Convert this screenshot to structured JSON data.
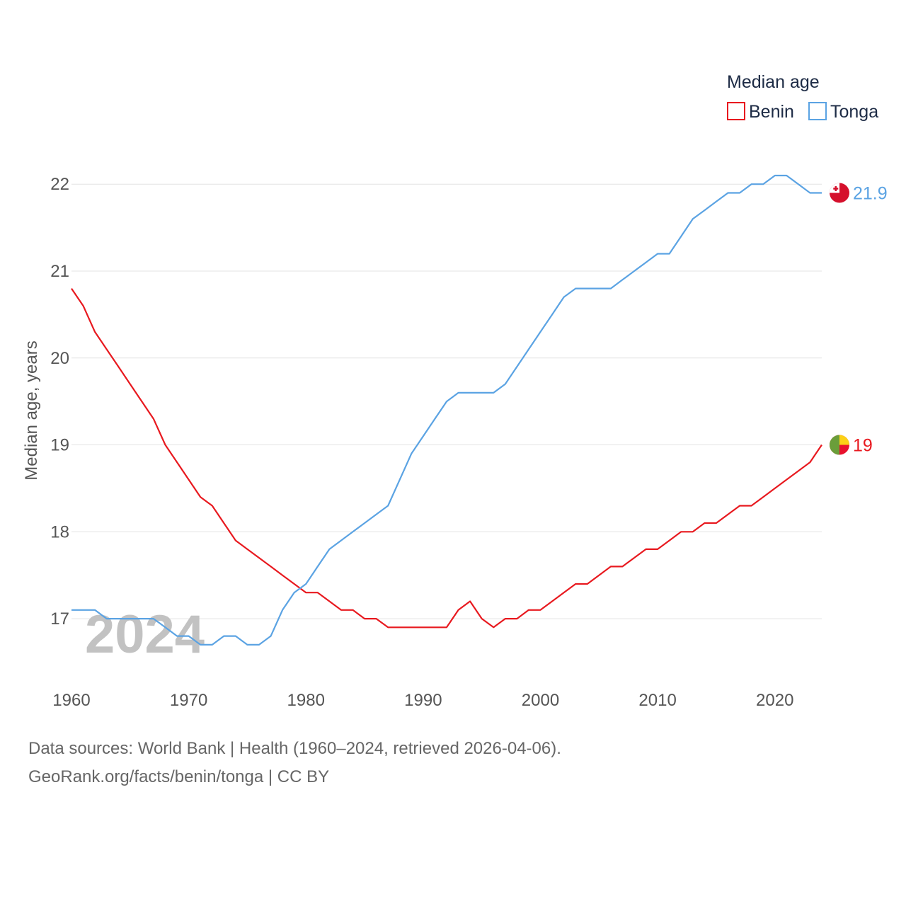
{
  "chart_data": {
    "type": "line",
    "legend_title": "Median age",
    "legend_position": "top-right",
    "ylabel": "Median age, years",
    "xlabel": "",
    "xlim": [
      1960,
      2024
    ],
    "ylim": [
      16.3,
      22.45
    ],
    "x_ticks": [
      1960,
      1970,
      1980,
      1990,
      2000,
      2010,
      2020
    ],
    "y_ticks": [
      17,
      18,
      19,
      20,
      21,
      22
    ],
    "grid": true,
    "current_year_label": "2024",
    "series": [
      {
        "name": "Benin",
        "color": "#e8191f",
        "flag": "benin-flag",
        "end_label": "19",
        "x": [
          1960,
          1961,
          1962,
          1963,
          1964,
          1965,
          1966,
          1967,
          1968,
          1969,
          1970,
          1971,
          1972,
          1973,
          1974,
          1975,
          1976,
          1977,
          1978,
          1979,
          1980,
          1981,
          1982,
          1983,
          1984,
          1985,
          1986,
          1987,
          1988,
          1989,
          1990,
          1991,
          1992,
          1993,
          1994,
          1995,
          1996,
          1997,
          1998,
          1999,
          2000,
          2001,
          2002,
          2003,
          2004,
          2005,
          2006,
          2007,
          2008,
          2009,
          2010,
          2011,
          2012,
          2013,
          2014,
          2015,
          2016,
          2017,
          2018,
          2019,
          2020,
          2021,
          2022,
          2023,
          2024
        ],
        "values": [
          20.8,
          20.6,
          20.3,
          20.1,
          19.9,
          19.7,
          19.5,
          19.3,
          19.0,
          18.8,
          18.6,
          18.4,
          18.3,
          18.1,
          17.9,
          17.8,
          17.7,
          17.6,
          17.5,
          17.4,
          17.3,
          17.3,
          17.2,
          17.1,
          17.1,
          17.0,
          17.0,
          16.9,
          16.9,
          16.9,
          16.9,
          16.9,
          16.9,
          17.1,
          17.2,
          17.0,
          16.9,
          17.0,
          17.0,
          17.1,
          17.1,
          17.2,
          17.3,
          17.4,
          17.4,
          17.5,
          17.6,
          17.6,
          17.7,
          17.8,
          17.8,
          17.9,
          18.0,
          18.0,
          18.1,
          18.1,
          18.2,
          18.3,
          18.3,
          18.4,
          18.5,
          18.6,
          18.7,
          18.8,
          19.0
        ]
      },
      {
        "name": "Tonga",
        "color": "#5ba3e3",
        "flag": "tonga-flag",
        "end_label": "21.9",
        "x": [
          1960,
          1961,
          1962,
          1963,
          1964,
          1965,
          1966,
          1967,
          1968,
          1969,
          1970,
          1971,
          1972,
          1973,
          1974,
          1975,
          1976,
          1977,
          1978,
          1979,
          1980,
          1981,
          1982,
          1983,
          1984,
          1985,
          1986,
          1987,
          1988,
          1989,
          1990,
          1991,
          1992,
          1993,
          1994,
          1995,
          1996,
          1997,
          1998,
          1999,
          2000,
          2001,
          2002,
          2003,
          2004,
          2005,
          2006,
          2007,
          2008,
          2009,
          2010,
          2011,
          2012,
          2013,
          2014,
          2015,
          2016,
          2017,
          2018,
          2019,
          2020,
          2021,
          2022,
          2023,
          2024
        ],
        "values": [
          17.1,
          17.1,
          17.1,
          17.0,
          17.0,
          17.0,
          17.0,
          17.0,
          16.9,
          16.8,
          16.8,
          16.7,
          16.7,
          16.8,
          16.8,
          16.7,
          16.7,
          16.8,
          17.1,
          17.3,
          17.4,
          17.6,
          17.8,
          17.9,
          18.0,
          18.1,
          18.2,
          18.3,
          18.6,
          18.9,
          19.1,
          19.3,
          19.5,
          19.6,
          19.6,
          19.6,
          19.6,
          19.7,
          19.9,
          20.1,
          20.3,
          20.5,
          20.7,
          20.8,
          20.8,
          20.8,
          20.8,
          20.9,
          21.0,
          21.1,
          21.2,
          21.2,
          21.4,
          21.6,
          21.7,
          21.8,
          21.9,
          21.9,
          22.0,
          22.0,
          22.1,
          22.1,
          22.0,
          21.9,
          21.9
        ]
      }
    ]
  },
  "footer": {
    "source": "Data sources: World Bank | Health (1960–2024, retrieved 2026-04-06).",
    "credit": "GeoRank.org/facts/benin/tonga | CC BY"
  }
}
